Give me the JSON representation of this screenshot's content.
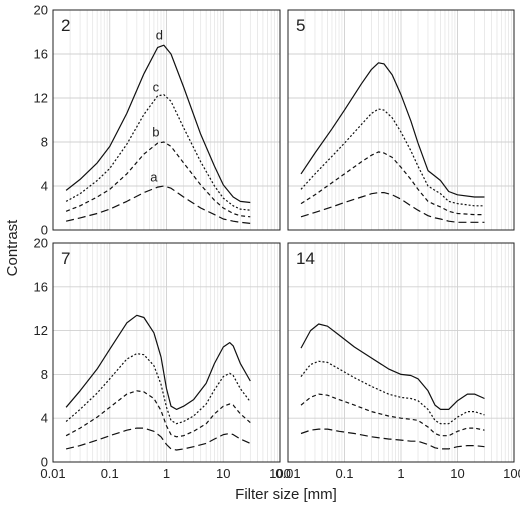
{
  "chart_data": {
    "type": "line",
    "xlabel": "Filter size [mm]",
    "ylabel": "Contrast",
    "xscale": "log",
    "xlim": [
      0.01,
      100
    ],
    "ylim": [
      0,
      20
    ],
    "x_ticks": [
      0.01,
      0.1,
      1,
      10,
      100
    ],
    "x_tick_labels": [
      "0.01",
      "0.1",
      "1",
      "10",
      "100"
    ],
    "y_ticks": [
      0,
      4,
      8,
      12,
      16,
      20
    ],
    "y_tick_labels": [
      "0",
      "4",
      "8",
      "12",
      "16",
      "20"
    ],
    "grid": true,
    "layout": "2x2",
    "panels": [
      {
        "label": "2",
        "series": [
          {
            "name": "d",
            "style": "solid",
            "x": [
              0.017,
              0.03,
              0.06,
              0.1,
              0.2,
              0.4,
              0.7,
              0.9,
              1.2,
              2,
              4,
              7,
              10,
              15,
              20,
              30
            ],
            "values": [
              3.6,
              4.6,
              6.1,
              7.6,
              10.6,
              14.2,
              16.6,
              16.8,
              16.0,
              13.0,
              8.7,
              5.8,
              4.1,
              3.0,
              2.6,
              2.5
            ]
          },
          {
            "name": "c",
            "style": "dotted",
            "x": [
              0.017,
              0.03,
              0.06,
              0.1,
              0.2,
              0.4,
              0.7,
              0.9,
              1.2,
              2,
              4,
              7,
              10,
              15,
              20,
              30
            ],
            "values": [
              2.6,
              3.3,
              4.5,
              5.6,
              7.8,
              10.5,
              12.2,
              12.3,
              11.7,
              9.3,
              6.2,
              4.0,
              2.9,
              2.2,
              1.9,
              1.8
            ]
          },
          {
            "name": "b",
            "style": "short-dash",
            "x": [
              0.017,
              0.03,
              0.06,
              0.1,
              0.2,
              0.4,
              0.7,
              0.9,
              1.2,
              2,
              4,
              7,
              10,
              15,
              20,
              30
            ],
            "values": [
              1.7,
              2.2,
              3.0,
              3.7,
              5.1,
              6.9,
              7.9,
              8.0,
              7.6,
              6.1,
              4.1,
              2.7,
              2.0,
              1.5,
              1.3,
              1.2
            ]
          },
          {
            "name": "a",
            "style": "long-dash",
            "x": [
              0.017,
              0.03,
              0.06,
              0.1,
              0.2,
              0.4,
              0.7,
              0.9,
              1.2,
              2,
              4,
              7,
              10,
              15,
              20,
              30
            ],
            "values": [
              0.8,
              1.1,
              1.5,
              1.9,
              2.6,
              3.4,
              3.9,
              4.0,
              3.8,
              3.0,
              2.0,
              1.4,
              1.0,
              0.8,
              0.7,
              0.6
            ]
          }
        ],
        "curve_labels": [
          {
            "text": "d",
            "x": 0.75,
            "y": 17.3
          },
          {
            "text": "c",
            "x": 0.65,
            "y": 12.6
          },
          {
            "text": "b",
            "x": 0.65,
            "y": 8.5
          },
          {
            "text": "a",
            "x": 0.6,
            "y": 4.4
          }
        ]
      },
      {
        "label": "5",
        "series": [
          {
            "name": "d",
            "style": "solid",
            "x": [
              0.017,
              0.03,
              0.06,
              0.1,
              0.2,
              0.3,
              0.4,
              0.5,
              0.7,
              1,
              1.5,
              2,
              3,
              4,
              5,
              7,
              10,
              20,
              30
            ],
            "values": [
              5.1,
              7.0,
              9.2,
              10.9,
              13.3,
              14.6,
              15.2,
              15.1,
              14.1,
              12.3,
              9.9,
              7.9,
              5.4,
              4.9,
              4.5,
              3.5,
              3.2,
              3.0,
              3.0
            ]
          },
          {
            "name": "c",
            "style": "dotted",
            "x": [
              0.017,
              0.03,
              0.06,
              0.1,
              0.2,
              0.3,
              0.4,
              0.5,
              0.7,
              1,
              1.5,
              2,
              3,
              4,
              5,
              7,
              10,
              20,
              30
            ],
            "values": [
              3.7,
              5.1,
              6.7,
              7.9,
              9.6,
              10.6,
              11.0,
              10.9,
              10.2,
              8.9,
              7.2,
              5.8,
              4.0,
              3.6,
              3.3,
              2.6,
              2.4,
              2.2,
              2.2
            ]
          },
          {
            "name": "b",
            "style": "short-dash",
            "x": [
              0.017,
              0.03,
              0.06,
              0.1,
              0.2,
              0.3,
              0.4,
              0.5,
              0.7,
              1,
              1.5,
              2,
              3,
              4,
              5,
              7,
              10,
              20,
              30
            ],
            "values": [
              2.4,
              3.2,
              4.3,
              5.1,
              6.2,
              6.8,
              7.1,
              7.0,
              6.6,
              5.7,
              4.6,
              3.7,
              2.6,
              2.3,
              2.1,
              1.7,
              1.5,
              1.4,
              1.4
            ]
          },
          {
            "name": "a",
            "style": "long-dash",
            "x": [
              0.017,
              0.03,
              0.06,
              0.1,
              0.2,
              0.3,
              0.4,
              0.5,
              0.7,
              1,
              1.5,
              2,
              3,
              4,
              5,
              7,
              10,
              20,
              30
            ],
            "values": [
              1.2,
              1.6,
              2.1,
              2.5,
              3.0,
              3.3,
              3.4,
              3.4,
              3.2,
              2.8,
              2.2,
              1.8,
              1.3,
              1.1,
              1.0,
              0.8,
              0.7,
              0.7,
              0.7
            ]
          }
        ]
      },
      {
        "label": "7",
        "series": [
          {
            "name": "d",
            "style": "solid",
            "x": [
              0.017,
              0.03,
              0.06,
              0.1,
              0.2,
              0.3,
              0.4,
              0.6,
              0.8,
              1,
              1.2,
              1.5,
              2,
              3,
              5,
              7,
              10,
              13,
              15,
              20,
              30
            ],
            "values": [
              5.0,
              6.5,
              8.5,
              10.3,
              12.7,
              13.4,
              13.2,
              11.8,
              9.6,
              6.7,
              5.1,
              4.8,
              5.1,
              5.7,
              7.2,
              9.0,
              10.5,
              10.9,
              10.6,
              9.0,
              7.4
            ]
          },
          {
            "name": "c",
            "style": "dotted",
            "x": [
              0.017,
              0.03,
              0.06,
              0.1,
              0.2,
              0.3,
              0.4,
              0.6,
              0.8,
              1,
              1.2,
              1.5,
              2,
              3,
              5,
              7,
              10,
              13,
              15,
              20,
              30
            ],
            "values": [
              3.7,
              4.8,
              6.3,
              7.6,
              9.4,
              9.9,
              9.8,
              8.8,
              7.1,
              5.0,
              3.8,
              3.5,
              3.7,
              4.2,
              5.3,
              6.6,
              7.8,
              8.1,
              7.9,
              6.7,
              5.5
            ]
          },
          {
            "name": "b",
            "style": "short-dash",
            "x": [
              0.017,
              0.03,
              0.06,
              0.1,
              0.2,
              0.3,
              0.4,
              0.6,
              0.8,
              1,
              1.2,
              1.5,
              2,
              3,
              5,
              7,
              10,
              13,
              15,
              20,
              30
            ],
            "values": [
              2.4,
              3.1,
              4.1,
              5.0,
              6.2,
              6.5,
              6.4,
              5.8,
              4.7,
              3.3,
              2.5,
              2.3,
              2.4,
              2.8,
              3.5,
              4.4,
              5.1,
              5.3,
              5.2,
              4.4,
              3.6
            ]
          },
          {
            "name": "a",
            "style": "long-dash",
            "x": [
              0.017,
              0.03,
              0.06,
              0.1,
              0.2,
              0.3,
              0.4,
              0.6,
              0.8,
              1,
              1.2,
              1.5,
              2,
              3,
              5,
              7,
              10,
              13,
              15,
              20,
              30
            ],
            "values": [
              1.2,
              1.5,
              2.0,
              2.4,
              2.9,
              3.1,
              3.1,
              2.8,
              2.3,
              1.6,
              1.2,
              1.1,
              1.2,
              1.4,
              1.7,
              2.1,
              2.5,
              2.6,
              2.5,
              2.1,
              1.7
            ]
          }
        ]
      },
      {
        "label": "14",
        "series": [
          {
            "name": "d",
            "style": "solid",
            "x": [
              0.017,
              0.025,
              0.035,
              0.05,
              0.08,
              0.15,
              0.3,
              0.6,
              1,
              1.5,
              2,
              3,
              4,
              5,
              7,
              10,
              15,
              20,
              30
            ],
            "values": [
              10.4,
              12.0,
              12.6,
              12.4,
              11.6,
              10.5,
              9.5,
              8.5,
              8.0,
              7.9,
              7.6,
              6.5,
              5.2,
              4.8,
              4.8,
              5.6,
              6.2,
              6.2,
              5.8
            ]
          },
          {
            "name": "c",
            "style": "dotted",
            "x": [
              0.017,
              0.025,
              0.035,
              0.05,
              0.08,
              0.15,
              0.3,
              0.6,
              1,
              1.5,
              2,
              3,
              4,
              5,
              7,
              10,
              15,
              20,
              30
            ],
            "values": [
              7.8,
              8.9,
              9.2,
              9.1,
              8.5,
              7.7,
              6.9,
              6.2,
              5.9,
              5.8,
              5.6,
              4.8,
              3.8,
              3.5,
              3.5,
              4.1,
              4.6,
              4.6,
              4.3
            ]
          },
          {
            "name": "b",
            "style": "short-dash",
            "x": [
              0.017,
              0.025,
              0.035,
              0.05,
              0.08,
              0.15,
              0.3,
              0.6,
              1,
              1.5,
              2,
              3,
              4,
              5,
              7,
              10,
              15,
              20,
              30
            ],
            "values": [
              5.2,
              5.9,
              6.2,
              6.1,
              5.7,
              5.2,
              4.6,
              4.2,
              4.0,
              3.9,
              3.8,
              3.2,
              2.6,
              2.4,
              2.4,
              2.8,
              3.1,
              3.1,
              2.9
            ]
          },
          {
            "name": "a",
            "style": "long-dash",
            "x": [
              0.017,
              0.025,
              0.035,
              0.05,
              0.08,
              0.15,
              0.3,
              0.6,
              1,
              1.5,
              2,
              3,
              4,
              5,
              7,
              10,
              15,
              20,
              30
            ],
            "values": [
              2.6,
              2.9,
              3.0,
              3.0,
              2.8,
              2.6,
              2.3,
              2.1,
              2.0,
              1.9,
              1.9,
              1.6,
              1.3,
              1.2,
              1.2,
              1.4,
              1.5,
              1.5,
              1.4
            ]
          }
        ]
      }
    ]
  }
}
